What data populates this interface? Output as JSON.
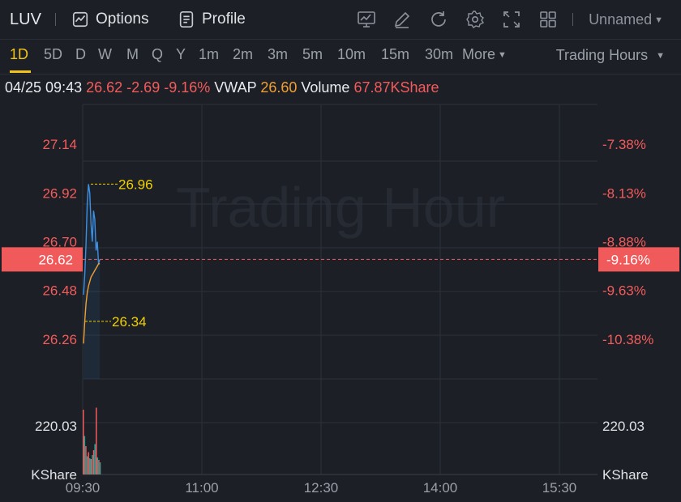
{
  "header": {
    "symbol": "LUV",
    "options_label": "Options",
    "profile_label": "Profile",
    "layout_label": "Unnamed",
    "tools": [
      "chart-icon",
      "pencil-icon",
      "refresh-icon",
      "gear-icon",
      "fullscreen-icon",
      "grid-icon"
    ]
  },
  "timeframes": [
    "1D",
    "5D",
    "D",
    "W",
    "M",
    "Q",
    "Y",
    "1m",
    "2m",
    "3m",
    "5m",
    "10m",
    "15m",
    "30m"
  ],
  "timeframe_active": "1D",
  "more_label": "More",
  "session_label": "Trading Hours",
  "info": {
    "datetime": "04/25 09:43",
    "price": "26.62",
    "change": "-2.69",
    "change_pct": "-9.16%",
    "vwap_label": "VWAP",
    "vwap": "26.60",
    "volume_label": "Volume",
    "volume": "67.87KShare"
  },
  "watermark": "Trading Hour",
  "colors": {
    "price_line": "#3d8fe0",
    "vwap_line": "#f0a030",
    "down": "#f45b5b",
    "up": "#26a69a",
    "label_yellow": "#f0d000",
    "grid": "#2c3039"
  },
  "chart_data": {
    "type": "line",
    "x_ticks": [
      "09:30",
      "11:00",
      "12:30",
      "14:00",
      "15:30"
    ],
    "price_ticks": [
      "27.14",
      "26.92",
      "26.70",
      "26.48",
      "26.26"
    ],
    "pct_ticks": [
      "-7.38%",
      "-8.13%",
      "-8.88%",
      "-9.63%",
      "-10.38%"
    ],
    "ylim": [
      26.08,
      27.32
    ],
    "current_price": 26.62,
    "current_price_label": "26.62",
    "current_pct_label": "-9.16%",
    "high_label": "26.96",
    "low_label": "26.34",
    "volume_tick_label": "220.03",
    "volume_unit_left": "KShare",
    "volume_unit_right": "KShare",
    "series": [
      {
        "name": "Price",
        "x_minutes": [
          0,
          1,
          2,
          3,
          4,
          5,
          6,
          7,
          8,
          9,
          10,
          11,
          12,
          13
        ],
        "values": [
          26.46,
          26.55,
          26.69,
          26.88,
          26.96,
          26.92,
          26.78,
          26.7,
          26.84,
          26.8,
          26.66,
          26.7,
          26.6,
          26.62
        ]
      },
      {
        "name": "VWAP",
        "x_minutes": [
          0,
          1,
          2,
          3,
          4,
          5,
          6,
          7,
          8,
          9,
          10,
          11,
          12,
          13
        ],
        "values": [
          26.24,
          26.34,
          26.42,
          26.47,
          26.5,
          26.52,
          26.54,
          26.55,
          26.56,
          26.57,
          26.58,
          26.59,
          26.6,
          26.6
        ]
      }
    ],
    "volume_bars": [
      {
        "v": 160,
        "up": false
      },
      {
        "v": 95,
        "up": true
      },
      {
        "v": 70,
        "up": false
      },
      {
        "v": 45,
        "up": true
      },
      {
        "v": 55,
        "up": false
      },
      {
        "v": 40,
        "up": true
      },
      {
        "v": 38,
        "up": false
      },
      {
        "v": 48,
        "up": true
      },
      {
        "v": 60,
        "up": false
      },
      {
        "v": 75,
        "up": true
      },
      {
        "v": 165,
        "up": false
      },
      {
        "v": 42,
        "up": true
      },
      {
        "v": 36,
        "up": false
      },
      {
        "v": 30,
        "up": true
      }
    ],
    "volume_max": 220.03
  }
}
